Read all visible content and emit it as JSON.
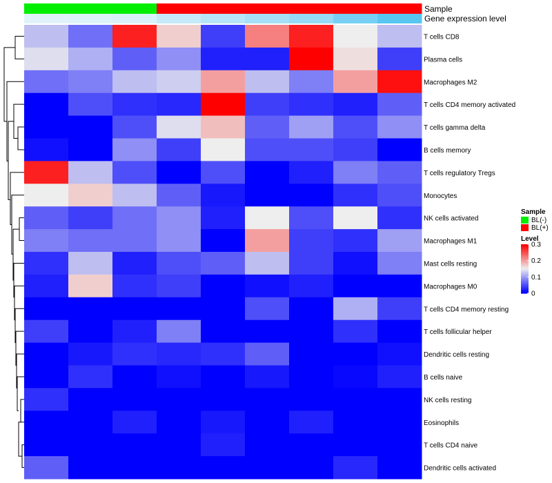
{
  "chart_data": {
    "type": "heatmap",
    "annotation_tracks": [
      {
        "name": "Sample",
        "label": "Sample",
        "values": [
          "BL(-)",
          "BL(-)",
          "BL(-)",
          "BL(+)",
          "BL(+)",
          "BL(+)",
          "BL(+)",
          "BL(+)",
          "BL(+)"
        ]
      },
      {
        "name": "Gene expression level",
        "label": "Gene expression level",
        "values": [
          0.08,
          0.1,
          0.12,
          0.25,
          0.35,
          0.45,
          0.55,
          0.75,
          0.95
        ]
      }
    ],
    "rows": [
      "T cells CD8",
      "Plasma cells",
      "Macrophages M2",
      "T cells CD4 memory activated",
      "T cells gamma delta",
      "B cells memory",
      "T cells regulatory  Tregs",
      "Monocytes",
      "NK cells activated",
      "Macrophages M1",
      "Mast cells resting",
      "Macrophages M0",
      "T cells CD4 memory resting",
      "T cells follicular helper",
      "Dendritic cells resting",
      "B cells naive",
      "NK cells resting",
      "Eosinophils",
      "T cells CD4 naive",
      "Dendritic cells activated"
    ],
    "columns": 9,
    "values": [
      [
        0.12,
        0.07,
        0.28,
        0.17,
        0.04,
        0.22,
        0.28,
        0.15,
        0.12
      ],
      [
        0.14,
        0.11,
        0.06,
        0.09,
        0.02,
        0.02,
        0.3,
        0.16,
        0.04
      ],
      [
        0.07,
        0.08,
        0.12,
        0.13,
        0.2,
        0.12,
        0.08,
        0.2,
        0.29
      ],
      [
        0.0,
        0.05,
        0.03,
        0.025,
        0.3,
        0.04,
        0.03,
        0.02,
        0.06
      ],
      [
        0.0,
        0.0,
        0.05,
        0.14,
        0.18,
        0.06,
        0.1,
        0.05,
        0.09
      ],
      [
        0.01,
        0.0,
        0.09,
        0.04,
        0.15,
        0.05,
        0.05,
        0.04,
        0.0
      ],
      [
        0.28,
        0.12,
        0.05,
        0.0,
        0.05,
        0.0,
        0.02,
        0.08,
        0.06
      ],
      [
        0.15,
        0.17,
        0.12,
        0.06,
        0.015,
        0.0,
        0.0,
        0.03,
        0.05
      ],
      [
        0.06,
        0.04,
        0.07,
        0.09,
        0.02,
        0.15,
        0.05,
        0.15,
        0.03
      ],
      [
        0.08,
        0.07,
        0.07,
        0.09,
        0.0,
        0.2,
        0.04,
        0.03,
        0.1
      ],
      [
        0.03,
        0.12,
        0.02,
        0.05,
        0.06,
        0.12,
        0.04,
        0.01,
        0.08
      ],
      [
        0.02,
        0.17,
        0.03,
        0.04,
        0.0,
        0.01,
        0.02,
        0.0,
        0.0
      ],
      [
        0.0,
        0.0,
        0.0,
        0.0,
        0.0,
        0.05,
        0.0,
        0.11,
        0.04
      ],
      [
        0.04,
        0.0,
        0.02,
        0.08,
        0.0,
        0.0,
        0.0,
        0.03,
        0.0
      ],
      [
        0.0,
        0.015,
        0.03,
        0.025,
        0.03,
        0.06,
        0.0,
        0.0,
        0.01
      ],
      [
        0.0,
        0.03,
        0.0,
        0.01,
        0.0,
        0.015,
        0.0,
        0.005,
        0.02
      ],
      [
        0.03,
        0.0,
        0.0,
        0.0,
        0.0,
        0.0,
        0.0,
        0.0,
        0.0
      ],
      [
        0.0,
        0.0,
        0.02,
        0.0,
        0.015,
        0.0,
        0.02,
        0.0,
        0.0
      ],
      [
        0.0,
        0.0,
        0.0,
        0.0,
        0.02,
        0.0,
        0.0,
        0.0,
        0.0
      ],
      [
        0.06,
        0.0,
        0.0,
        0.0,
        0.0,
        0.0,
        0.0,
        0.025,
        0.0
      ]
    ],
    "color_scale": {
      "min": 0,
      "mid": 0.15,
      "max": 0.3,
      "low": "#0000FF",
      "mid_color": "#EEEEEE",
      "high": "#FF0000"
    },
    "legend": {
      "sample_title": "Sample",
      "sample_items": [
        {
          "label": "BL(-)",
          "color": "#00EE00"
        },
        {
          "label": "BL(+)",
          "color": "#FF0000"
        }
      ],
      "level_title": "Level",
      "level_ticks": [
        "0.3",
        "0.2",
        "0.1",
        "0"
      ],
      "level_tick_values": [
        0.3,
        0.2,
        0.1,
        0
      ]
    },
    "annotation_colors": {
      "sample": {
        "BL(-)": "#00EE00",
        "BL(+)": "#FF0000"
      },
      "gene_low": "#EEF7FB",
      "gene_high": "#4FC3F0"
    },
    "dendrogram_color": "#000000"
  }
}
